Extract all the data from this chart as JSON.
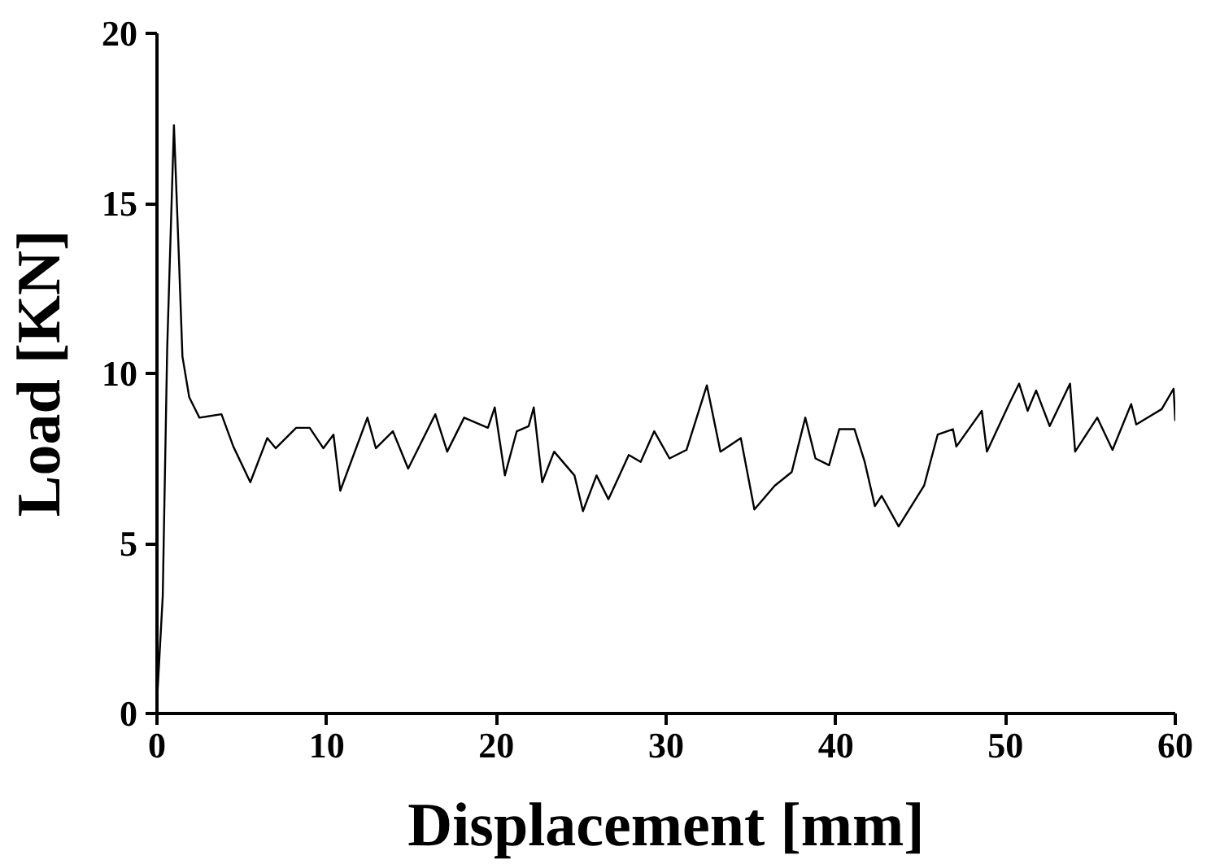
{
  "chart_data": {
    "type": "line",
    "xlabel": "Displacement [mm]",
    "ylabel": "Load [KN]",
    "x": [
      0,
      0.34,
      0.6,
      1.0,
      1.3,
      1.5,
      1.9,
      2.5,
      3.8,
      4.5,
      5.5,
      6.5,
      7.0,
      8.2,
      9.0,
      9.8,
      10.4,
      10.8,
      12.4,
      12.9,
      13.9,
      14.8,
      16.4,
      17.1,
      18.1,
      19.5,
      19.9,
      20.5,
      21.2,
      21.9,
      22.2,
      22.7,
      23.4,
      24.6,
      25.1,
      25.9,
      26.6,
      27.8,
      28.5,
      29.3,
      30.2,
      31.2,
      32.4,
      33.2,
      34.4,
      35.2,
      36.4,
      37.4,
      38.2,
      38.8,
      39.6,
      40.2,
      41.1,
      41.7,
      42.3,
      42.7,
      43.7,
      45.2,
      46.0,
      46.9,
      47.1,
      48.6,
      48.9,
      50.3,
      50.8,
      51.3,
      51.8,
      52.6,
      53.8,
      54.1,
      55.4,
      56.3,
      57.4,
      57.7,
      59.2,
      59.9,
      60.0
    ],
    "series": [
      {
        "color": "#000000",
        "values": [
          0.35,
          3.45,
          10.7,
          17.3,
          13.3,
          10.5,
          9.3,
          8.7,
          8.8,
          7.85,
          6.8,
          8.1,
          7.8,
          8.4,
          8.4,
          7.8,
          8.2,
          6.55,
          8.7,
          7.8,
          8.3,
          7.2,
          8.8,
          7.7,
          8.7,
          8.4,
          9.0,
          7.0,
          8.3,
          8.45,
          9.0,
          6.8,
          7.7,
          7.0,
          5.95,
          7.0,
          6.3,
          7.6,
          7.4,
          8.3,
          7.5,
          7.75,
          9.65,
          7.7,
          8.1,
          6.0,
          6.7,
          7.1,
          8.7,
          7.5,
          7.3,
          8.36,
          8.36,
          7.4,
          6.1,
          6.4,
          5.5,
          6.7,
          8.2,
          8.36,
          7.85,
          8.9,
          7.7,
          9.2,
          9.7,
          8.9,
          9.5,
          8.45,
          9.7,
          7.7,
          8.7,
          7.75,
          9.1,
          8.5,
          8.95,
          9.55,
          8.6
        ]
      }
    ],
    "xlim": [
      0,
      60
    ],
    "ylim": [
      0,
      20
    ],
    "xticks": [
      0,
      10,
      20,
      30,
      40,
      50,
      60
    ],
    "yticks": [
      0,
      5,
      10,
      15,
      20
    ],
    "grid": false,
    "line_style": "solid",
    "marker": "none"
  }
}
